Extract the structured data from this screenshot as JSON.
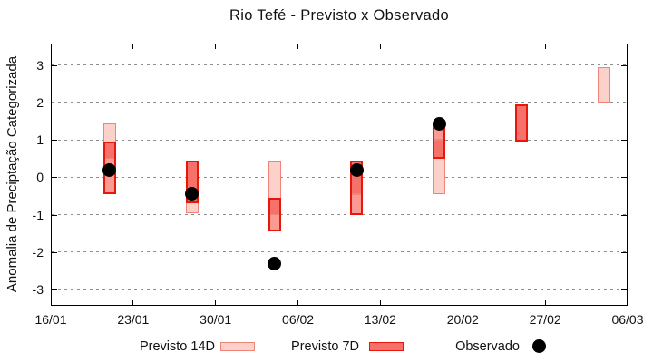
{
  "chart_data": {
    "type": "candlestick",
    "title": "Rio Tefé - Previsto x Observado",
    "ylabel": "Anomalia de Preciptação Categorizada",
    "legend_position": "bottom",
    "x_axis": {
      "tick_labels": [
        "16/01",
        "23/01",
        "30/01",
        "06/02",
        "13/02",
        "20/02",
        "27/02",
        "06/03"
      ],
      "tick_days": [
        0,
        7,
        14,
        21,
        28,
        35,
        42,
        49
      ],
      "span_days": 49
    },
    "y_axis": {
      "ticks": [
        3,
        2,
        1,
        0,
        -1,
        -2,
        -3
      ],
      "max": 3.57,
      "min": -3.43,
      "grid": "dashed-horizontal"
    },
    "bars": [
      {
        "date": "21/01",
        "day": 5,
        "previsto_14d": [
          0.5,
          1.45
        ],
        "previsto_7d": [
          -0.45,
          0.95
        ],
        "observado": 0.2
      },
      {
        "date": "28/01",
        "day": 12,
        "previsto_14d": [
          -0.95,
          0.45
        ],
        "previsto_7d": [
          -0.7,
          0.45
        ],
        "observado": -0.45
      },
      {
        "date": "04/02",
        "day": 19,
        "previsto_14d": [
          -1.0,
          0.45
        ],
        "previsto_7d": [
          -1.45,
          -0.55
        ],
        "observado": -2.3
      },
      {
        "date": "11/02",
        "day": 26,
        "previsto_14d": [
          -0.45,
          0.45
        ],
        "previsto_7d": [
          -1.0,
          0.45
        ],
        "observado": 0.2
      },
      {
        "date": "18/02",
        "day": 33,
        "previsto_14d": [
          -0.45,
          1.0
        ],
        "previsto_7d": [
          0.5,
          1.45
        ],
        "observado": 1.43
      },
      {
        "date": "25/02",
        "day": 40,
        "previsto_14d": [
          0.95,
          1.95
        ],
        "previsto_7d": [
          0.95,
          1.95
        ],
        "observado": null
      },
      {
        "date": "04/03",
        "day": 47,
        "previsto_14d": [
          2.0,
          2.95
        ],
        "previsto_7d": null,
        "observado": null
      }
    ],
    "legend": {
      "previsto_14d": "Previsto 14D",
      "previsto_7d": "Previsto 7D",
      "observado": "Observado"
    }
  },
  "colors": {
    "previsto_14d_fill": "#fbd1c9",
    "previsto_14d_border": "#ef8478",
    "previsto_7d_only_fill": "#fa9a92",
    "overlap_fill": "#f6716a",
    "previsto_7d_border": "#e8170c",
    "observado_dot": "#000000",
    "grid": "#8c8c8c"
  }
}
